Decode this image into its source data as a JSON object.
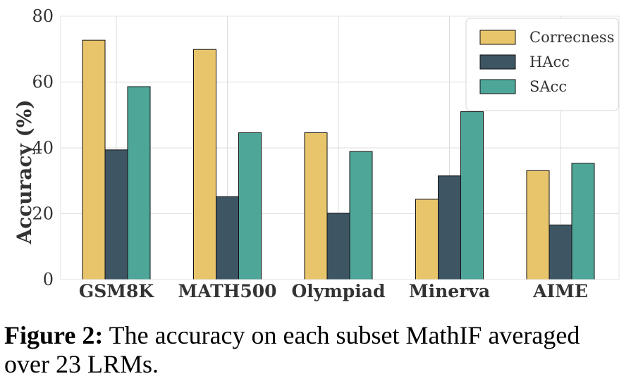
{
  "chart_data": {
    "type": "bar",
    "categories": [
      "GSM8K",
      "MATH500",
      "Olympiad",
      "Minerva",
      "AIME"
    ],
    "series": [
      {
        "name": "Correcness",
        "values": [
          72.7,
          69.9,
          44.6,
          24.4,
          33.1
        ],
        "color": "#e8c56b"
      },
      {
        "name": "HAcc",
        "values": [
          39.4,
          25.2,
          20.2,
          31.5,
          16.6
        ],
        "color": "#3e5564"
      },
      {
        "name": "SAcc",
        "values": [
          58.6,
          44.6,
          38.9,
          51.0,
          35.3
        ],
        "color": "#4ea699"
      }
    ],
    "ylabel": "Accuracy (%)",
    "ylim": [
      0,
      80
    ],
    "yticks": [
      0,
      20,
      40,
      60,
      80
    ],
    "grid": true,
    "legend_position": "top-right"
  },
  "caption": {
    "label": "Figure 2:",
    "text": "The accuracy on each subset MathIF averaged over 23 LRMs."
  }
}
